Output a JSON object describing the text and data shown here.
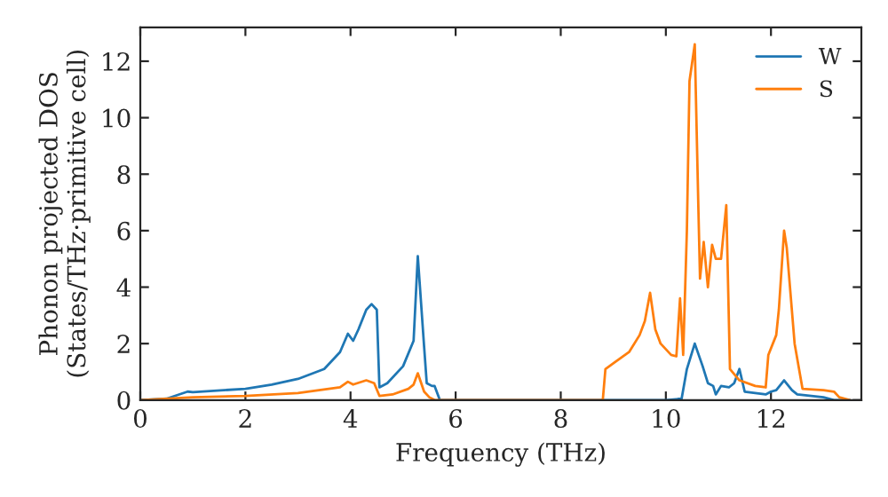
{
  "chart_data": {
    "type": "line",
    "xlabel": "Frequency (THz)",
    "ylabel": "Phonon projected DOS\n(States/THz·primitive cell)",
    "xlim": [
      0,
      13.72
    ],
    "ylim": [
      0,
      13.2
    ],
    "xticks": [
      0,
      2,
      4,
      6,
      8,
      10,
      12
    ],
    "yticks": [
      0,
      2,
      4,
      6,
      8,
      10,
      12
    ],
    "grid": false,
    "legend": "top right",
    "series": [
      {
        "name": "W",
        "color": "#1f77b4",
        "x": [
          0,
          0.5,
          0.9,
          1.0,
          2,
          2.5,
          3,
          3.5,
          3.8,
          3.95,
          4.05,
          4.15,
          4.3,
          4.4,
          4.5,
          4.55,
          4.7,
          5.0,
          5.2,
          5.28,
          5.4,
          5.45,
          5.55,
          5.6,
          5.7,
          6,
          8,
          10,
          10.3,
          10.4,
          10.55,
          10.7,
          10.8,
          10.9,
          10.95,
          11.05,
          11.2,
          11.3,
          11.4,
          11.5,
          11.9,
          12.0,
          12.1,
          12.25,
          12.4,
          12.5,
          13.0,
          13.2,
          13.5
        ],
        "values": [
          0,
          0.05,
          0.3,
          0.28,
          0.4,
          0.55,
          0.75,
          1.1,
          1.7,
          2.35,
          2.1,
          2.5,
          3.2,
          3.4,
          3.2,
          0.45,
          0.6,
          1.2,
          2.1,
          5.1,
          1.9,
          0.6,
          0.5,
          0.5,
          0,
          0,
          0,
          0,
          0.05,
          1.1,
          2.0,
          1.2,
          0.6,
          0.5,
          0.2,
          0.5,
          0.45,
          0.6,
          1.1,
          0.3,
          0.2,
          0.3,
          0.35,
          0.7,
          0.35,
          0.2,
          0.1,
          0,
          0
        ]
      },
      {
        "name": "S",
        "color": "#ff7f0e",
        "x": [
          0,
          1,
          2,
          3,
          3.8,
          3.95,
          4.05,
          4.3,
          4.45,
          4.55,
          4.8,
          5.1,
          5.2,
          5.28,
          5.4,
          5.5,
          5.6,
          8.8,
          8.85,
          9.0,
          9.3,
          9.5,
          9.6,
          9.7,
          9.8,
          9.9,
          10.1,
          10.2,
          10.27,
          10.33,
          10.4,
          10.45,
          10.55,
          10.62,
          10.65,
          10.72,
          10.8,
          10.88,
          10.95,
          11.05,
          11.15,
          11.22,
          11.4,
          11.7,
          11.9,
          11.95,
          12.1,
          12.15,
          12.25,
          12.3,
          12.45,
          12.6,
          13.0,
          13.2,
          13.3,
          13.5
        ],
        "values": [
          0,
          0.1,
          0.15,
          0.25,
          0.45,
          0.65,
          0.55,
          0.7,
          0.6,
          0.15,
          0.2,
          0.4,
          0.55,
          0.95,
          0.3,
          0.1,
          0,
          0,
          1.1,
          1.3,
          1.7,
          2.3,
          2.8,
          3.8,
          2.5,
          2.0,
          1.6,
          1.55,
          3.6,
          1.6,
          6.0,
          11.3,
          12.6,
          6.7,
          4.3,
          5.6,
          4.0,
          5.5,
          5.0,
          5.0,
          6.9,
          1.1,
          0.7,
          0.5,
          0.45,
          1.6,
          2.3,
          3.2,
          6.0,
          5.4,
          2.0,
          0.4,
          0.35,
          0.3,
          0.1,
          0
        ]
      }
    ]
  }
}
